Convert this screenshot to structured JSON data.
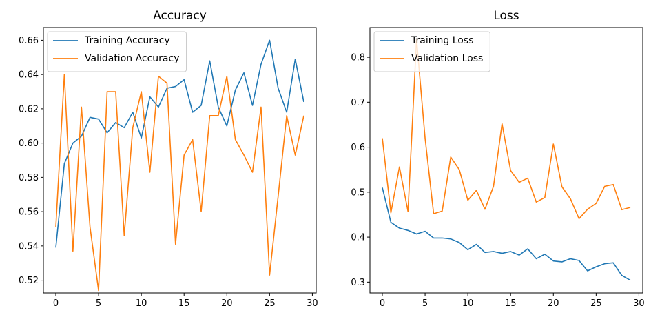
{
  "chart_data": [
    {
      "type": "line",
      "title": "Accuracy",
      "xlabel": "",
      "ylabel": "",
      "xlim": [
        -1.45,
        30.45
      ],
      "ylim": [
        0.5126,
        0.6674
      ],
      "xticks": [
        0,
        5,
        10,
        15,
        20,
        25,
        30
      ],
      "yticks": [
        0.52,
        0.54,
        0.56,
        0.58,
        0.6,
        0.62,
        0.64,
        0.66
      ],
      "ytick_labels": [
        "0.52",
        "0.54",
        "0.56",
        "0.58",
        "0.60",
        "0.62",
        "0.64",
        "0.66"
      ],
      "grid": false,
      "legend": "upper-left",
      "x": [
        0,
        1,
        2,
        3,
        4,
        5,
        6,
        7,
        8,
        9,
        10,
        11,
        12,
        13,
        14,
        15,
        16,
        17,
        18,
        19,
        20,
        21,
        22,
        23,
        24,
        25,
        26,
        27,
        28,
        29
      ],
      "series": [
        {
          "name": "Training Accuracy",
          "color": "#1f77b4",
          "values": [
            0.539,
            0.588,
            0.6,
            0.604,
            0.615,
            0.614,
            0.606,
            0.612,
            0.609,
            0.618,
            0.603,
            0.627,
            0.621,
            0.632,
            0.633,
            0.637,
            0.618,
            0.622,
            0.648,
            0.621,
            0.61,
            0.631,
            0.641,
            0.622,
            0.646,
            0.66,
            0.632,
            0.618,
            0.649,
            0.624
          ]
        },
        {
          "name": "Validation Accuracy",
          "color": "#ff7f0e",
          "values": [
            0.551,
            0.64,
            0.537,
            0.621,
            0.551,
            0.514,
            0.63,
            0.63,
            0.546,
            0.609,
            0.63,
            0.583,
            0.639,
            0.635,
            0.541,
            0.593,
            0.602,
            0.56,
            0.616,
            0.616,
            0.639,
            0.602,
            0.593,
            0.583,
            0.621,
            0.523,
            0.569,
            0.616,
            0.593,
            0.616
          ]
        }
      ]
    },
    {
      "type": "line",
      "title": "Loss",
      "xlabel": "",
      "ylabel": "",
      "xlim": [
        -1.45,
        30.45
      ],
      "ylim": [
        0.276,
        0.866
      ],
      "xticks": [
        0,
        5,
        10,
        15,
        20,
        25,
        30
      ],
      "yticks": [
        0.3,
        0.4,
        0.5,
        0.6,
        0.7,
        0.8
      ],
      "ytick_labels": [
        "0.3",
        "0.4",
        "0.5",
        "0.6",
        "0.7",
        "0.8"
      ],
      "grid": false,
      "legend": "upper-left",
      "x": [
        0,
        1,
        2,
        3,
        4,
        5,
        6,
        7,
        8,
        9,
        10,
        11,
        12,
        13,
        14,
        15,
        16,
        17,
        18,
        19,
        20,
        21,
        22,
        23,
        24,
        25,
        26,
        27,
        28,
        29
      ],
      "series": [
        {
          "name": "Training Loss",
          "color": "#1f77b4",
          "values": [
            0.51,
            0.433,
            0.42,
            0.415,
            0.407,
            0.413,
            0.398,
            0.398,
            0.396,
            0.388,
            0.372,
            0.384,
            0.366,
            0.368,
            0.364,
            0.368,
            0.36,
            0.374,
            0.352,
            0.362,
            0.347,
            0.345,
            0.352,
            0.348,
            0.325,
            0.334,
            0.341,
            0.343,
            0.315,
            0.304
          ]
        },
        {
          "name": "Validation Loss",
          "color": "#ff7f0e",
          "values": [
            0.62,
            0.454,
            0.556,
            0.457,
            0.84,
            0.62,
            0.452,
            0.458,
            0.578,
            0.55,
            0.482,
            0.504,
            0.462,
            0.513,
            0.652,
            0.548,
            0.522,
            0.531,
            0.478,
            0.488,
            0.607,
            0.512,
            0.485,
            0.441,
            0.462,
            0.475,
            0.513,
            0.517,
            0.461,
            0.466
          ]
        }
      ]
    }
  ]
}
